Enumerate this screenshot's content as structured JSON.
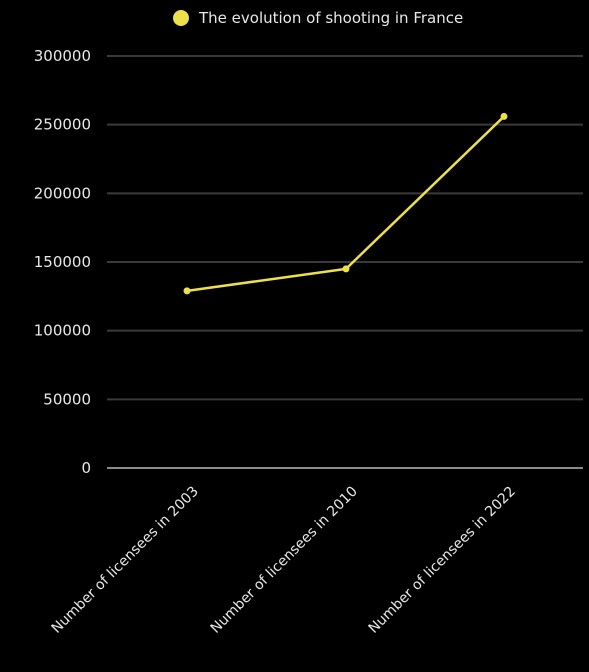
{
  "chart_data": {
    "type": "line",
    "categories": [
      "Number of licensees in 2003",
      "Number of licensees in 2010",
      "Number of licensees in 2022"
    ],
    "series": [
      {
        "name": "The evolution of shooting in France",
        "values": [
          129000,
          145000,
          256000
        ],
        "color": "#ede04a"
      }
    ],
    "ylim": [
      0,
      300000
    ],
    "yticks": [
      0,
      50000,
      100000,
      150000,
      200000,
      250000,
      300000
    ],
    "grid": true,
    "legend": "top-center",
    "background": "#000000",
    "grid_color": "#3a3a3a",
    "axis_color": "#8a8a8a"
  }
}
